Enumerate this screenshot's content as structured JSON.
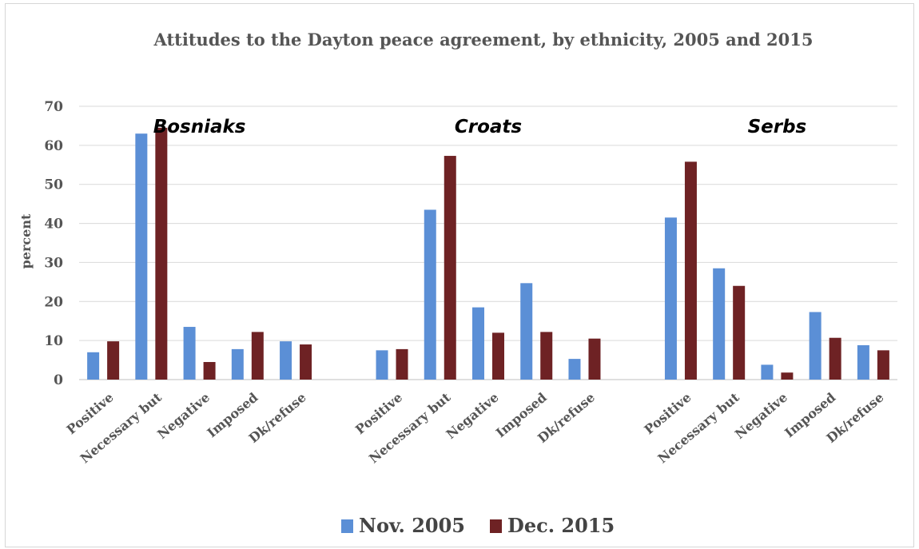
{
  "chart_data": {
    "type": "bar",
    "title": "Attitudes to the Dayton peace agreement, by ethnicity, 2005 and 2015",
    "ylabel": "percent",
    "xlabel": "",
    "ylim": [
      0,
      70
    ],
    "yticks": [
      0,
      10,
      20,
      30,
      40,
      50,
      60,
      70
    ],
    "grid": true,
    "legend_position": "bottom",
    "groups": [
      {
        "name": "Bosniaks",
        "categories": [
          "Positive",
          "Necessary but",
          "Negative",
          "Imposed",
          "Dk/refuse"
        ],
        "series": [
          {
            "name": "Nov. 2005",
            "values": [
              7,
              63,
              13.5,
              7.8,
              9.8
            ]
          },
          {
            "name": "Dec. 2015",
            "values": [
              9.8,
              64.5,
              4.5,
              12.2,
              9
            ]
          }
        ]
      },
      {
        "name": "Croats",
        "categories": [
          "Positive",
          "Necessary but",
          "Negative",
          "Imposed",
          "Dk/refuse"
        ],
        "series": [
          {
            "name": "Nov. 2005",
            "values": [
              7.5,
              43.5,
              18.5,
              24.7,
              5.3
            ]
          },
          {
            "name": "Dec. 2015",
            "values": [
              7.8,
              57.3,
              12,
              12.2,
              10.5
            ]
          }
        ]
      },
      {
        "name": "Serbs",
        "categories": [
          "Positive",
          "Necessary but",
          "Negative",
          "Imposed",
          "Dk/refuse"
        ],
        "series": [
          {
            "name": "Nov. 2005",
            "values": [
              41.5,
              28.5,
              3.8,
              17.3,
              8.8
            ]
          },
          {
            "name": "Dec. 2015",
            "values": [
              55.8,
              24,
              1.8,
              10.7,
              7.5
            ]
          }
        ]
      }
    ],
    "series_colors": {
      "Nov. 2005": "#5b8fd6",
      "Dec. 2015": "#6e2224"
    }
  }
}
